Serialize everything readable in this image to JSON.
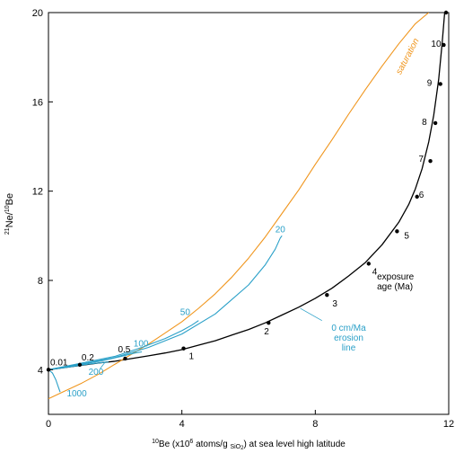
{
  "chart_data": {
    "type": "line",
    "xlabel": "¹⁰Be (x10⁶ atoms/g SiO₂) at sea level high latitude",
    "xlabel_parts": {
      "pre": "10",
      "main": "Be (x10",
      "exp": "6",
      "post": " atoms/g ",
      "sub": "SiO",
      "sub2": "2",
      "end": ") at sea level high latitude"
    },
    "ylabel": "²¹Ne/¹⁰Be",
    "ylabel_parts": {
      "sup1": "21",
      "main1": "Ne/",
      "sup2": "10",
      "main2": "Be"
    },
    "xlim": [
      0,
      12
    ],
    "ylim": [
      2,
      20
    ],
    "x_ticks": [
      0,
      4,
      8,
      12
    ],
    "y_ticks": [
      4,
      8,
      12,
      16,
      20
    ],
    "grid": false,
    "colors": {
      "zero_erosion": "#000000",
      "saturation": "#f0961e",
      "erosion": "#2aa0c8"
    },
    "series": [
      {
        "name": "0 cm/Ma erosion line",
        "color": "#000000",
        "x": [
          0.0,
          0.5,
          1.0,
          1.5,
          2.0,
          2.5,
          3.0,
          3.5,
          4.0,
          4.5,
          5.0,
          5.5,
          6.0,
          6.5,
          7.0,
          7.5,
          8.0,
          8.5,
          9.0,
          9.5,
          10.0,
          10.5,
          10.8,
          11.0,
          11.2,
          11.4,
          11.55,
          11.7,
          11.8,
          11.88
        ],
        "y": [
          4.0,
          4.1,
          4.2,
          4.3,
          4.38,
          4.5,
          4.62,
          4.75,
          4.9,
          5.1,
          5.3,
          5.55,
          5.8,
          6.1,
          6.45,
          6.8,
          7.2,
          7.65,
          8.2,
          8.8,
          9.6,
          10.6,
          11.4,
          12.1,
          13.0,
          14.2,
          15.4,
          17.0,
          18.6,
          20.0
        ]
      },
      {
        "name": "saturation",
        "color": "#f0961e",
        "x": [
          0.0,
          0.5,
          1.0,
          1.5,
          2.0,
          2.5,
          3.0,
          3.5,
          4.0,
          4.5,
          5.0,
          5.5,
          6.0,
          6.5,
          7.0,
          7.5,
          8.0,
          8.5,
          9.0,
          9.5,
          10.0,
          10.5,
          11.0,
          11.4
        ],
        "y": [
          2.7,
          3.05,
          3.4,
          3.8,
          4.25,
          4.7,
          5.15,
          5.65,
          6.15,
          6.75,
          7.4,
          8.15,
          9.0,
          9.95,
          11.0,
          12.05,
          13.2,
          14.3,
          15.45,
          16.55,
          17.6,
          18.6,
          19.5,
          20.0
        ]
      },
      {
        "name": "20",
        "color": "#2aa0c8",
        "x": [
          0.0,
          1.0,
          2.0,
          3.0,
          4.0,
          5.0,
          6.0,
          6.5,
          6.8,
          6.95,
          7.0
        ],
        "y": [
          4.0,
          4.25,
          4.55,
          5.0,
          5.6,
          6.5,
          7.8,
          8.7,
          9.4,
          9.9,
          10.0
        ]
      },
      {
        "name": "50",
        "color": "#2aa0c8",
        "x": [
          0.0,
          1.0,
          2.0,
          2.8,
          3.5,
          4.0,
          4.3,
          4.45,
          4.5
        ],
        "y": [
          4.0,
          4.3,
          4.6,
          5.0,
          5.4,
          5.75,
          6.0,
          6.15,
          6.2
        ]
      },
      {
        "name": "100",
        "color": "#2aa0c8",
        "x": [
          0.0,
          0.8,
          1.6,
          2.2,
          2.6,
          2.8
        ],
        "y": [
          4.0,
          4.2,
          4.4,
          4.6,
          4.75,
          4.8
        ]
      },
      {
        "name": "200",
        "color": "#2aa0c8",
        "x": [
          0.0,
          0.6,
          1.2,
          1.6,
          1.8
        ],
        "y": [
          4.0,
          4.12,
          4.25,
          4.32,
          4.35
        ]
      },
      {
        "name": "1000",
        "color": "#2aa0c8",
        "x": [
          0.0,
          0.12,
          0.22,
          0.3,
          0.35
        ],
        "y": [
          4.0,
          3.85,
          3.55,
          3.2,
          3.0
        ]
      }
    ],
    "exposure_age_points": {
      "x": [
        0.0,
        0.94,
        2.3,
        4.05,
        6.6,
        8.35,
        9.6,
        10.45,
        11.05,
        11.45,
        11.6,
        11.75,
        11.85,
        11.92
      ],
      "y": [
        4.0,
        4.22,
        4.5,
        4.95,
        6.1,
        7.35,
        8.75,
        10.2,
        11.75,
        13.35,
        15.05,
        16.8,
        18.55,
        20.0
      ],
      "labels": [
        "0.01",
        "0.2",
        "0.5",
        "1",
        "2",
        "3",
        "4",
        "5",
        "6",
        "7",
        "8",
        "9",
        "10",
        ""
      ]
    },
    "annotations": {
      "saturation_label": "saturation",
      "erosion_rate_labels": [
        "20",
        "50",
        "100",
        "200",
        "1000"
      ],
      "zero_erosion_label": [
        "0 cm/Ma",
        "erosion",
        "line"
      ],
      "exposure_age_label": [
        "exposure",
        "age (Ma)"
      ]
    }
  }
}
